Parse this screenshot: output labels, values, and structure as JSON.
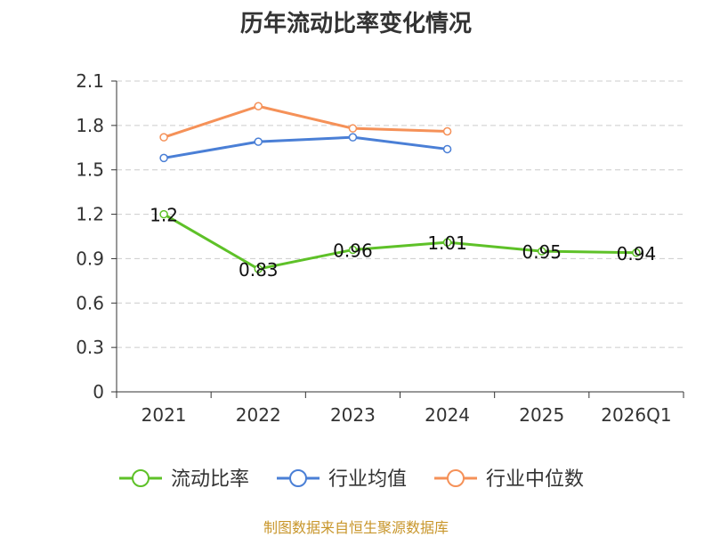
{
  "chart_data": {
    "type": "line",
    "title": "历年流动比率变化情况",
    "categories": [
      "2021",
      "2022",
      "2023",
      "2024",
      "2025",
      "2026Q1"
    ],
    "y_ticks": [
      "0",
      "0.3",
      "0.6",
      "0.9",
      "1.2",
      "1.5",
      "1.8",
      "2.1"
    ],
    "ylim": [
      0,
      2.1
    ],
    "grid": true,
    "legend_position": "bottom",
    "series": [
      {
        "name": "流动比率",
        "color": "#5ec128",
        "values": [
          1.2,
          0.83,
          0.96,
          1.01,
          0.95,
          0.94
        ],
        "labels": [
          "1.2",
          "0.83",
          "0.96",
          "1.01",
          "0.95",
          "0.94"
        ],
        "show_labels": true
      },
      {
        "name": "行业均值",
        "color": "#4a7fd6",
        "values": [
          1.58,
          1.69,
          1.72,
          1.64,
          null,
          null
        ],
        "show_labels": false
      },
      {
        "name": "行业中位数",
        "color": "#f59158",
        "values": [
          1.72,
          1.93,
          1.78,
          1.76,
          null,
          null
        ],
        "show_labels": false
      }
    ]
  },
  "source_note": "制图数据来自恒生聚源数据库"
}
